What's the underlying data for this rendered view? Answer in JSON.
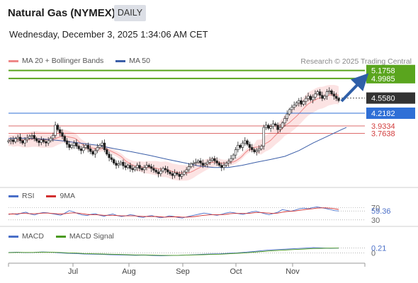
{
  "header": {
    "title": "Natural Gas (NYMEX)",
    "timeframe": "DAILY",
    "datetime": "Wednesday, December 3, 2025 1:34:06 AM CET"
  },
  "legend": {
    "ma20_label": "MA 20 + Bollinger Bands",
    "ma20_color": "#ee8888",
    "ma50_label": "MA 50",
    "ma50_color": "#3b5ea8",
    "research": "Research © 2025 Trading Central"
  },
  "chart_data": [
    {
      "type": "candlestick",
      "title": "",
      "x_ticks": [
        "Jul",
        "Aug",
        "Sep",
        "Oct",
        "Nov"
      ],
      "ylim": [
        2.6,
        5.25
      ],
      "current_price": "4.5580",
      "levels": [
        {
          "value": "5.1758",
          "kind": "target",
          "color": "#5aa51e"
        },
        {
          "value": "4.9985",
          "kind": "resistance",
          "color": "#5aa51e"
        },
        {
          "value": "4.5580",
          "kind": "last",
          "color": "#333333"
        },
        {
          "value": "4.2182",
          "kind": "pivot",
          "color": "#2f6fd6"
        },
        {
          "value": "3.9334",
          "kind": "support",
          "color": "#d23c3c"
        },
        {
          "value": "3.7638",
          "kind": "support",
          "color": "#d23c3c"
        }
      ],
      "close_series": [
        3.6,
        3.62,
        3.58,
        3.65,
        3.68,
        3.6,
        3.55,
        3.62,
        3.66,
        3.7,
        3.72,
        3.65,
        3.6,
        3.56,
        3.62,
        3.58,
        3.55,
        3.6,
        3.66,
        3.72,
        3.95,
        3.85,
        3.78,
        3.7,
        3.6,
        3.52,
        3.45,
        3.5,
        3.55,
        3.48,
        3.42,
        3.38,
        3.45,
        3.5,
        3.42,
        3.36,
        3.3,
        3.38,
        3.45,
        3.5,
        3.55,
        3.4,
        3.3,
        3.22,
        3.18,
        3.1,
        3.05,
        3.08,
        3.12,
        3.04,
        3.0,
        3.05,
        2.98,
        2.95,
        3.0,
        3.05,
        2.98,
        2.95,
        3.0,
        3.05,
        3.02,
        2.98,
        2.94,
        2.9,
        2.86,
        2.92,
        2.98,
        2.95,
        2.9,
        2.86,
        2.82,
        2.88,
        2.85,
        2.8,
        2.85,
        2.9,
        2.95,
        3.02,
        3.08,
        3.1,
        3.12,
        3.15,
        3.1,
        3.05,
        3.08,
        3.12,
        3.16,
        3.2,
        3.15,
        3.1,
        3.05,
        3.0,
        3.05,
        3.1,
        3.14,
        3.2,
        3.28,
        3.4,
        3.5,
        3.45,
        3.55,
        3.6,
        3.52,
        3.45,
        3.4,
        3.35,
        3.38,
        3.42,
        3.48,
        3.9,
        3.95,
        3.88,
        3.92,
        3.98,
        3.95,
        3.85,
        3.9,
        4.0,
        4.1,
        4.2,
        4.3,
        4.35,
        4.4,
        4.45,
        4.5,
        4.42,
        4.48,
        4.55,
        4.6,
        4.52,
        4.58,
        4.65,
        4.7,
        4.62,
        4.55,
        4.6,
        4.7,
        4.72,
        4.65,
        4.6,
        4.55,
        4.5
      ],
      "ma50_points": [
        [
          0,
          3.65
        ],
        [
          25,
          3.66
        ],
        [
          50,
          3.64
        ],
        [
          75,
          3.6
        ],
        [
          100,
          3.55
        ],
        [
          125,
          3.5
        ],
        [
          150,
          3.42
        ],
        [
          175,
          3.35
        ],
        [
          200,
          3.27
        ],
        [
          225,
          3.18
        ],
        [
          250,
          3.1
        ],
        [
          270,
          3.03
        ],
        [
          290,
          3.0
        ],
        [
          310,
          3.0
        ],
        [
          330,
          3.05
        ],
        [
          350,
          3.12
        ],
        [
          370,
          3.18
        ],
        [
          390,
          3.25
        ],
        [
          410,
          3.38
        ],
        [
          430,
          3.55
        ],
        [
          450,
          3.7
        ],
        [
          470,
          3.85
        ],
        [
          477,
          3.9
        ]
      ]
    },
    {
      "type": "line",
      "title": "",
      "ylim": [
        25,
        80
      ],
      "y_ticks": [
        "70",
        "30"
      ],
      "value_label": "59.36",
      "series": [
        {
          "name": "RSI",
          "color": "#4a6fc8",
          "values": [
            48,
            50,
            47,
            52,
            55,
            49,
            46,
            51,
            54,
            53,
            50,
            48,
            45,
            52,
            60,
            56,
            50,
            46,
            44,
            48,
            50,
            45,
            42,
            46,
            49,
            44,
            41,
            43,
            47,
            45,
            40,
            38,
            42,
            44,
            40,
            37,
            39,
            43,
            41,
            38,
            36,
            40,
            43,
            46,
            49,
            52,
            50,
            47,
            45,
            48,
            52,
            55,
            53,
            50,
            48,
            52,
            56,
            58,
            54,
            50,
            47,
            51,
            55,
            63,
            61,
            58,
            62,
            66,
            68,
            66,
            70,
            72,
            70,
            67,
            64,
            60,
            59
          ]
        },
        {
          "name": "9MA",
          "color": "#d23030",
          "values": [
            49,
            49,
            50,
            51,
            51,
            50,
            50,
            51,
            52,
            52,
            51,
            50,
            49,
            50,
            52,
            53,
            52,
            50,
            48,
            47,
            47,
            46,
            45,
            45,
            45,
            44,
            43,
            43,
            43,
            43,
            42,
            41,
            41,
            41,
            41,
            40,
            39,
            40,
            40,
            40,
            39,
            39,
            40,
            41,
            43,
            45,
            46,
            47,
            47,
            47,
            48,
            50,
            51,
            51,
            51,
            51,
            52,
            54,
            54,
            53,
            52,
            51,
            52,
            55,
            57,
            58,
            59,
            61,
            63,
            65,
            66,
            68,
            69,
            69,
            68,
            66,
            64
          ]
        }
      ]
    },
    {
      "type": "line",
      "title": "",
      "ylim": [
        -0.3,
        0.45
      ],
      "y_ticks": [
        "0"
      ],
      "value_label": "0.21",
      "series": [
        {
          "name": "MACD",
          "color": "#4a6fc8",
          "values": [
            0.02,
            0.03,
            0.01,
            0.02,
            0.04,
            0.03,
            0.0,
            -0.02,
            -0.03,
            -0.05,
            -0.06,
            -0.07,
            -0.08,
            -0.09,
            -0.1,
            -0.11,
            -0.1,
            -0.12,
            -0.13,
            -0.12,
            -0.11,
            -0.1,
            -0.08,
            -0.06,
            -0.05,
            -0.04,
            -0.02,
            0.0,
            0.03,
            0.06,
            0.1,
            0.13,
            0.15,
            0.17,
            0.19,
            0.21,
            0.23,
            0.22,
            0.2,
            0.21
          ]
        },
        {
          "name": "MACD Signal",
          "color": "#4a9a1e",
          "values": [
            0.01,
            0.02,
            0.02,
            0.02,
            0.03,
            0.03,
            0.02,
            0.0,
            -0.01,
            -0.03,
            -0.04,
            -0.05,
            -0.06,
            -0.07,
            -0.08,
            -0.09,
            -0.09,
            -0.1,
            -0.11,
            -0.11,
            -0.11,
            -0.1,
            -0.09,
            -0.08,
            -0.07,
            -0.06,
            -0.04,
            -0.02,
            0.0,
            0.03,
            0.06,
            0.09,
            0.11,
            0.13,
            0.15,
            0.17,
            0.19,
            0.2,
            0.21,
            0.21
          ]
        }
      ]
    }
  ]
}
